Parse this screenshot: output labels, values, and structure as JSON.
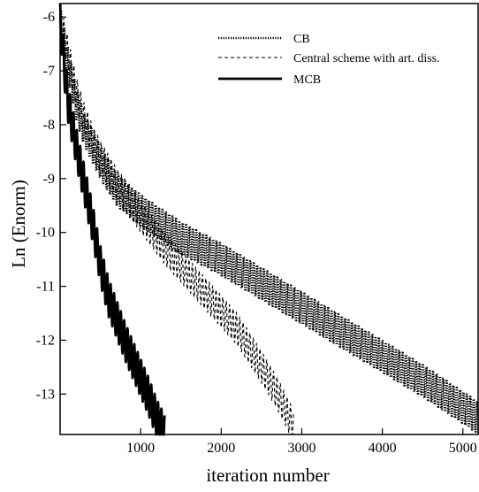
{
  "chart_data": {
    "type": "line",
    "title": "",
    "xlabel": "iteration number",
    "ylabel": "Ln (Enorm)",
    "xlim": [
      0,
      5200
    ],
    "ylim": [
      -13.75,
      -5.75
    ],
    "x_ticks": [
      1000,
      2000,
      3000,
      4000,
      5000
    ],
    "y_ticks": [
      -6,
      -7,
      -8,
      -9,
      -10,
      -11,
      -12,
      -13
    ],
    "grid": false,
    "legend_position": "top-right",
    "series": [
      {
        "name": "CB",
        "style": "dotted-thick",
        "color": "#000000",
        "x": [
          0,
          100,
          200,
          300,
          400,
          500,
          700,
          1000,
          1500,
          2000,
          2500,
          3000,
          3500,
          4000,
          4500,
          5000,
          5200
        ],
        "y": [
          -6.1,
          -6.9,
          -7.6,
          -8.1,
          -8.4,
          -8.7,
          -9.2,
          -9.6,
          -10.1,
          -10.5,
          -10.95,
          -11.4,
          -11.85,
          -12.3,
          -12.75,
          -13.25,
          -13.45
        ],
        "oscillation": 0.3
      },
      {
        "name": "Central scheme with art. diss.",
        "style": "dashed",
        "color": "#000000",
        "x": [
          0,
          100,
          200,
          300,
          400,
          500,
          700,
          1000,
          1300,
          1600,
          1900,
          2200,
          2500,
          2700,
          2900
        ],
        "y": [
          -6.0,
          -6.7,
          -7.4,
          -7.9,
          -8.3,
          -8.6,
          -9.1,
          -9.7,
          -10.3,
          -10.8,
          -11.3,
          -11.8,
          -12.5,
          -13.0,
          -13.6
        ],
        "oscillation": 0.3
      },
      {
        "name": "MCB",
        "style": "solid-thick",
        "color": "#000000",
        "x": [
          0,
          50,
          100,
          200,
          300,
          400,
          500,
          600,
          700,
          800,
          900,
          1000,
          1100,
          1200,
          1300
        ],
        "y": [
          -6.0,
          -6.9,
          -7.6,
          -8.4,
          -9.1,
          -9.8,
          -10.6,
          -11.2,
          -11.6,
          -12.0,
          -12.35,
          -12.7,
          -13.05,
          -13.45,
          -13.75
        ],
        "oscillation": 0.35
      }
    ]
  }
}
